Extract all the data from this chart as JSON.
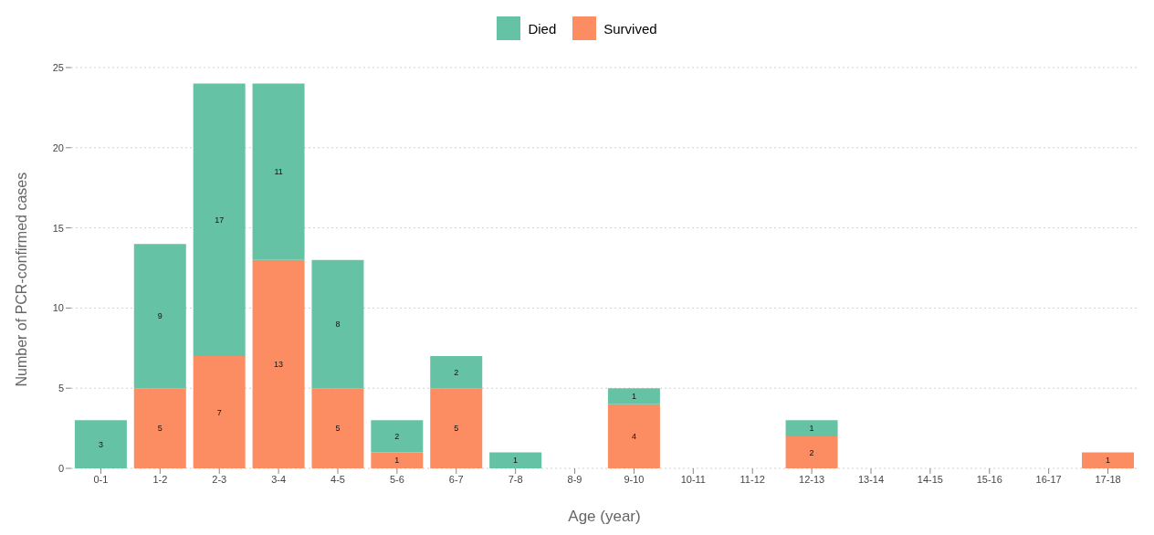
{
  "chart_data": {
    "type": "bar",
    "stacked": true,
    "xlabel": "Age (year)",
    "ylabel": "Number of PCR-confirmed cases",
    "categories": [
      "0-1",
      "1-2",
      "2-3",
      "3-4",
      "4-5",
      "5-6",
      "6-7",
      "7-8",
      "8-9",
      "9-10",
      "10-11",
      "11-12",
      "12-13",
      "13-14",
      "14-15",
      "15-16",
      "16-17",
      "17-18"
    ],
    "series": [
      {
        "name": "Survived",
        "color": "#fc8d62",
        "values": [
          null,
          5,
          7,
          13,
          5,
          1,
          5,
          null,
          null,
          4,
          null,
          null,
          2,
          null,
          null,
          null,
          null,
          1
        ]
      },
      {
        "name": "Died",
        "color": "#66c2a5",
        "values": [
          3,
          9,
          17,
          11,
          8,
          2,
          2,
          1,
          null,
          1,
          null,
          null,
          1,
          null,
          null,
          null,
          null,
          null
        ]
      }
    ],
    "ylim": [
      0,
      25
    ],
    "yticks": [
      0,
      5,
      10,
      15,
      20,
      25
    ],
    "grid": "y",
    "legend": "top",
    "data_labels": true
  }
}
